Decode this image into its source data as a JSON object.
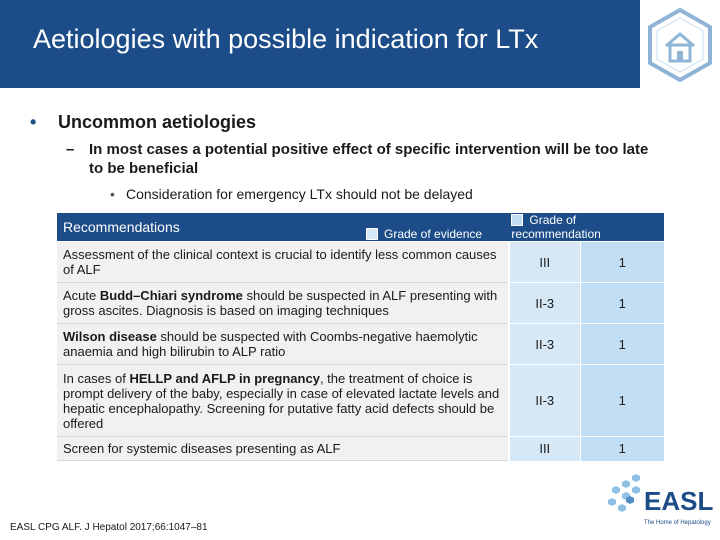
{
  "header": {
    "title": "Aetiologies with possible indication for LTx",
    "home_icon": "home-icon",
    "colors": {
      "title_bar": "#1d4d89",
      "hex_outline": "#8fb4d6"
    }
  },
  "content": {
    "bullet_l1": "Uncommon aetiologies",
    "bullet_l2": "In most cases a potential positive effect of specific intervention will be too late to be beneficial",
    "bullet_l3": "Consideration for emergency LTx should not be delayed"
  },
  "table": {
    "header_label": "Recommendations",
    "legend_evidence": "Grade of evidence",
    "legend_recommendation": "Grade of recommendation",
    "colors": {
      "evidence": "#d6e8f6",
      "recommendation": "#c2def4"
    },
    "rows": [
      {
        "pre": "Assessment of the clinical context is crucial to identify less common causes of ALF",
        "bold": "",
        "post": "",
        "evidence": "III",
        "recommendation": "1"
      },
      {
        "pre": "Acute ",
        "bold": "Budd–Chiari syndrome",
        "post": " should be suspected in ALF presenting with gross ascites. Diagnosis is based on imaging techniques",
        "evidence": "II-3",
        "recommendation": "1"
      },
      {
        "pre": "",
        "bold": "Wilson disease",
        "post": " should be suspected with Coombs-negative haemolytic anaemia and high bilirubin to ALP ratio",
        "evidence": "II-3",
        "recommendation": "1"
      },
      {
        "pre": "In cases of ",
        "bold": "HELLP and AFLP in pregnancy",
        "post": ", the treatment of choice is prompt delivery of the baby, especially in case of elevated lactate levels and hepatic encephalopathy. Screening for putative fatty acid defects should be offered",
        "evidence": "II-3",
        "recommendation": "1"
      },
      {
        "pre": "Screen for systemic diseases presenting as ALF",
        "bold": "",
        "post": "",
        "evidence": "III",
        "recommendation": "1"
      }
    ]
  },
  "footer": {
    "citation": "EASL CPG ALF. J Hepatol 2017;66:1047–81",
    "logo_text": "EASL",
    "logo_tagline": "The Home of Hepatology",
    "logo_color": "#1d4d89"
  }
}
